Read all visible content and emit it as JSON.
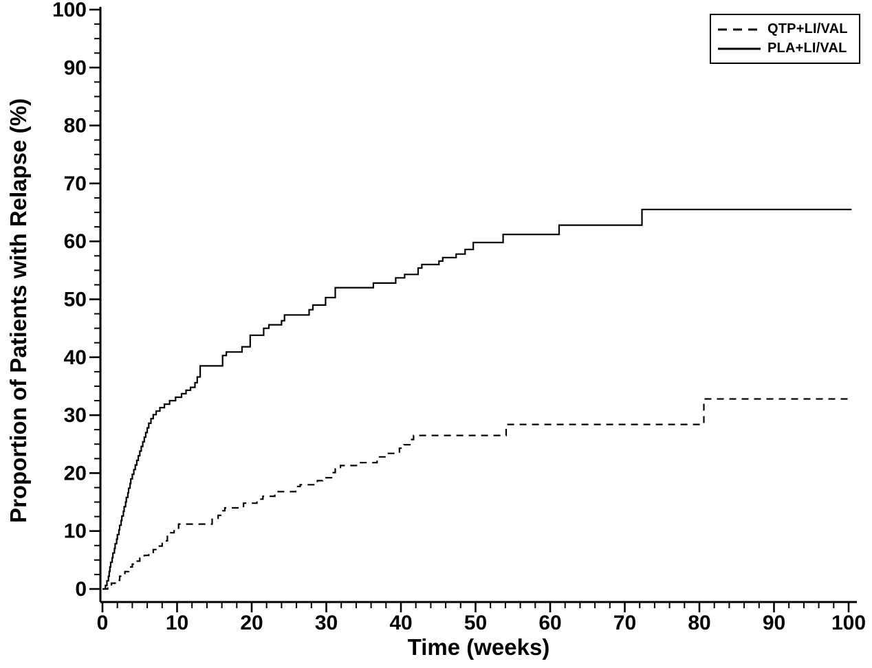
{
  "figure": {
    "background_color": "#ffffff",
    "foreground_color": "#000000"
  },
  "legend": {
    "position": "top-right",
    "items": [
      {
        "id": "qtp_li_val",
        "label": "QTP+LI/VAL",
        "line_style": "dashed",
        "color": "#000000"
      },
      {
        "id": "pla_li_val",
        "label": "PLA+LI/VAL",
        "line_style": "solid",
        "color": "#000000"
      }
    ]
  },
  "chart_data": {
    "type": "line",
    "subtype": "kaplan-meier-step",
    "title": "",
    "xlabel": "Time (weeks)",
    "ylabel": "Proportion of Patients with Relapse (%)",
    "xlim": [
      0,
      100
    ],
    "ylim": [
      0,
      100
    ],
    "grid": false,
    "legend_position": "top-right",
    "x_major_ticks": [
      0,
      10,
      20,
      30,
      40,
      50,
      60,
      70,
      80,
      90,
      100
    ],
    "x_tick_labels": [
      "0",
      "10",
      "20",
      "30",
      "40",
      "50",
      "60",
      "70",
      "80",
      "90",
      "100"
    ],
    "x_minor_step": 2,
    "y_major_ticks": [
      0,
      10,
      20,
      30,
      40,
      50,
      60,
      70,
      80,
      90,
      100
    ],
    "y_tick_labels": [
      "0",
      "10",
      "20",
      "30",
      "40",
      "50",
      "60",
      "70",
      "80",
      "90",
      "100"
    ],
    "y_minor_step": 2.5,
    "series": [
      {
        "id": "qtp_li_val",
        "name": "QTP+LI/VAL",
        "style": "dashed",
        "color": "#000000",
        "points": [
          [
            0,
            0
          ],
          [
            0.7,
            0.5
          ],
          [
            1.2,
            1.0
          ],
          [
            1.7,
            1.5
          ],
          [
            2.3,
            2.2
          ],
          [
            3.0,
            3.0
          ],
          [
            3.5,
            3.8
          ],
          [
            4.0,
            4.3
          ],
          [
            4.5,
            4.8
          ],
          [
            5.0,
            5.3
          ],
          [
            5.6,
            5.8
          ],
          [
            6.2,
            6.3
          ],
          [
            6.8,
            6.8
          ],
          [
            7.4,
            7.4
          ],
          [
            8.0,
            8.3
          ],
          [
            8.7,
            9.7
          ],
          [
            9.6,
            10.5
          ],
          [
            10.2,
            11.2
          ],
          [
            14.7,
            12.2
          ],
          [
            15.5,
            12.7
          ],
          [
            16.0,
            13.5
          ],
          [
            16.4,
            14.0
          ],
          [
            18.9,
            14.8
          ],
          [
            20.7,
            15.5
          ],
          [
            21.5,
            16.0
          ],
          [
            23.1,
            16.8
          ],
          [
            25.9,
            17.7
          ],
          [
            26.5,
            18.0
          ],
          [
            28.8,
            18.7
          ],
          [
            29.5,
            19.2
          ],
          [
            30.7,
            20.1
          ],
          [
            31.2,
            20.7
          ],
          [
            31.9,
            21.3
          ],
          [
            34.4,
            21.8
          ],
          [
            36.8,
            22.8
          ],
          [
            38.0,
            23.4
          ],
          [
            39.8,
            24.3
          ],
          [
            40.4,
            24.9
          ],
          [
            41.2,
            25.8
          ],
          [
            41.7,
            26.5
          ],
          [
            54.1,
            28.4
          ],
          [
            80.6,
            32.8
          ],
          [
            100.4,
            32.8
          ]
        ]
      },
      {
        "id": "pla_li_val",
        "name": "PLA+LI/VAL",
        "style": "solid",
        "color": "#000000",
        "points": [
          [
            0,
            0
          ],
          [
            0.4,
            0.6
          ],
          [
            0.6,
            1.4
          ],
          [
            0.8,
            2.2
          ],
          [
            0.9,
            3.0
          ],
          [
            1.0,
            3.8
          ],
          [
            1.1,
            4.6
          ],
          [
            1.3,
            5.4
          ],
          [
            1.4,
            6.2
          ],
          [
            1.6,
            7.0
          ],
          [
            1.7,
            7.8
          ],
          [
            1.9,
            8.6
          ],
          [
            2.0,
            9.4
          ],
          [
            2.2,
            10.2
          ],
          [
            2.3,
            11.0
          ],
          [
            2.5,
            11.8
          ],
          [
            2.6,
            12.6
          ],
          [
            2.8,
            13.4
          ],
          [
            2.9,
            14.2
          ],
          [
            3.1,
            15.0
          ],
          [
            3.2,
            15.8
          ],
          [
            3.4,
            16.6
          ],
          [
            3.5,
            17.4
          ],
          [
            3.7,
            18.2
          ],
          [
            3.8,
            19.0
          ],
          [
            4.0,
            19.8
          ],
          [
            4.2,
            20.6
          ],
          [
            4.4,
            21.4
          ],
          [
            4.6,
            22.2
          ],
          [
            4.8,
            23.0
          ],
          [
            5.0,
            23.8
          ],
          [
            5.2,
            24.6
          ],
          [
            5.4,
            25.4
          ],
          [
            5.6,
            26.2
          ],
          [
            5.8,
            27.0
          ],
          [
            6.0,
            27.8
          ],
          [
            6.2,
            28.6
          ],
          [
            6.5,
            29.4
          ],
          [
            6.8,
            30.1
          ],
          [
            7.2,
            30.7
          ],
          [
            7.7,
            31.3
          ],
          [
            8.3,
            31.9
          ],
          [
            9.0,
            32.5
          ],
          [
            9.8,
            33.1
          ],
          [
            10.6,
            33.7
          ],
          [
            11.2,
            34.3
          ],
          [
            11.8,
            34.8
          ],
          [
            12.4,
            35.6
          ],
          [
            12.7,
            36.6
          ],
          [
            13.1,
            38.5
          ],
          [
            16.1,
            40.3
          ],
          [
            16.6,
            40.9
          ],
          [
            18.7,
            41.8
          ],
          [
            19.8,
            43.8
          ],
          [
            21.6,
            45.0
          ],
          [
            22.3,
            45.6
          ],
          [
            24.0,
            46.3
          ],
          [
            24.4,
            47.3
          ],
          [
            27.7,
            48.2
          ],
          [
            28.2,
            49.0
          ],
          [
            29.9,
            50.3
          ],
          [
            31.2,
            52.0
          ],
          [
            36.3,
            52.8
          ],
          [
            39.3,
            53.7
          ],
          [
            40.5,
            54.3
          ],
          [
            42.3,
            55.4
          ],
          [
            42.8,
            56.0
          ],
          [
            45.1,
            56.6
          ],
          [
            45.6,
            57.2
          ],
          [
            47.4,
            57.8
          ],
          [
            48.6,
            58.6
          ],
          [
            49.7,
            59.8
          ],
          [
            53.7,
            61.2
          ],
          [
            61.2,
            62.8
          ],
          [
            72.3,
            65.5
          ],
          [
            100.4,
            65.5
          ]
        ]
      }
    ]
  }
}
